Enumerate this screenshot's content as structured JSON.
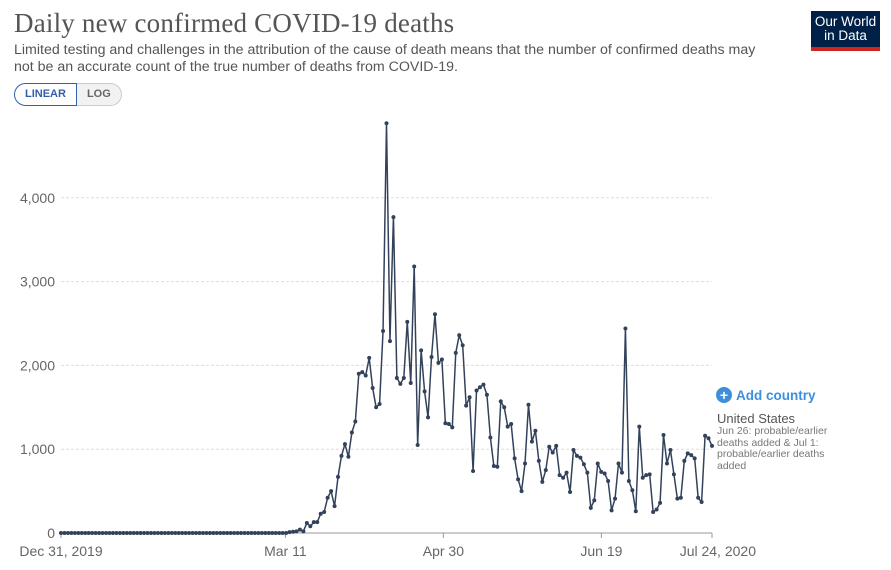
{
  "header": {
    "title": "Daily new confirmed COVID-19 deaths",
    "subtitle": "Limited testing and challenges in the attribution of the cause of death means that the number of confirmed deaths may not be an accurate count of the true number of deaths from COVID-19."
  },
  "logo": {
    "line1": "Our World",
    "line2": "in Data"
  },
  "scale_toggle": {
    "linear_label": "LINEAR",
    "log_label": "LOG",
    "selected": "LINEAR"
  },
  "add_country": {
    "label": "Add country"
  },
  "legend": {
    "country": "United States",
    "note": "Jun 26: probable/earlier deaths added & Jul 1: probable/earlier deaths added"
  },
  "colors": {
    "line": "#33425b",
    "accent": "#3e8fdb",
    "logo_bg": "#002147",
    "logo_bar": "#ce261e"
  },
  "chart_data": {
    "type": "line",
    "title": "Daily new confirmed COVID-19 deaths",
    "series_name": "United States",
    "x_start": "2019-12-31",
    "x_end": "2020-07-24",
    "x_ticks": [
      "Dec 31, 2019",
      "Mar 11",
      "Apr 30",
      "Jun 19",
      "Jul 24, 2020"
    ],
    "x_tick_days": [
      0,
      71,
      121,
      171,
      206
    ],
    "y_ticks": [
      "0",
      "1,000",
      "2,000",
      "3,000",
      "4,000"
    ],
    "y_tick_values": [
      0,
      1000,
      2000,
      3000,
      4000
    ],
    "ylim": [
      0,
      4900
    ],
    "grid": "horizontal dashed",
    "values": [
      0,
      0,
      0,
      0,
      0,
      0,
      0,
      0,
      0,
      0,
      0,
      0,
      0,
      0,
      0,
      0,
      0,
      0,
      0,
      0,
      0,
      0,
      0,
      0,
      0,
      0,
      0,
      0,
      0,
      0,
      0,
      0,
      0,
      0,
      0,
      0,
      0,
      0,
      0,
      0,
      0,
      0,
      0,
      0,
      0,
      0,
      0,
      0,
      0,
      0,
      0,
      0,
      0,
      0,
      0,
      0,
      0,
      0,
      0,
      0,
      0,
      0,
      0,
      0,
      0,
      0,
      10,
      15,
      20,
      40,
      20,
      120,
      80,
      130,
      130,
      230,
      250,
      420,
      500,
      320,
      670,
      920,
      1060,
      910,
      1200,
      1330,
      1900,
      1920,
      1880,
      2090,
      1730,
      1500,
      1540,
      2410,
      4890,
      2290,
      3770,
      1850,
      1780,
      1850,
      2520,
      1790,
      3180,
      1050,
      2180,
      1690,
      1380,
      2100,
      2610,
      2030,
      2070,
      1310,
      1300,
      1260,
      2150,
      2360,
      2240,
      1520,
      1620,
      740,
      1700,
      1740,
      1770,
      1650,
      1140,
      800,
      790,
      1570,
      1500,
      1270,
      1300,
      890,
      640,
      500,
      830,
      1530,
      1090,
      1220,
      860,
      610,
      750,
      1030,
      960,
      1040,
      690,
      660,
      720,
      490,
      990,
      920,
      900,
      820,
      720,
      300,
      390,
      830,
      730,
      710,
      620,
      270,
      410,
      830,
      720,
      2440,
      620,
      510,
      260,
      1270,
      660,
      690,
      700,
      250,
      280,
      360,
      1170,
      830,
      990,
      700,
      410,
      420,
      860,
      950,
      930,
      890,
      420,
      370,
      1160,
      1130,
      1040
    ]
  }
}
